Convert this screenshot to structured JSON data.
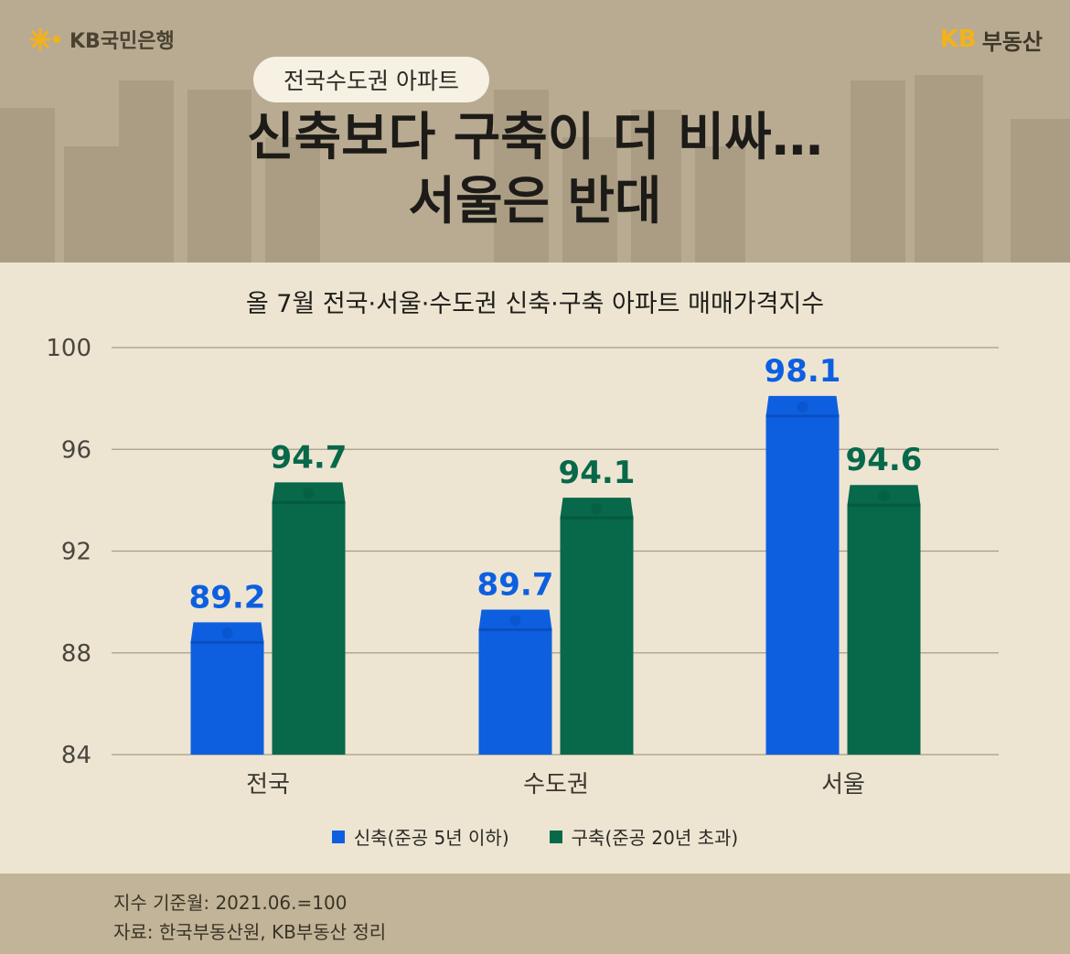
{
  "brand": {
    "bank": "KB국민은행",
    "realestate_kb": "KB",
    "realestate_name": "부동산"
  },
  "header": {
    "badge": "전국수도권 아파트",
    "headline_line1": "신축보다 구축이 더 비싸…",
    "headline_line2": "서울은 반대"
  },
  "chart_data": {
    "type": "bar",
    "title": "올 7월 전국·서울·수도권 신축·구축 아파트 매매가격지수",
    "categories": [
      "전국",
      "수도권",
      "서울"
    ],
    "series": [
      {
        "name": "신축(준공 5년 이하)",
        "values": [
          89.2,
          89.7,
          98.1
        ],
        "labels": [
          "89.2",
          "89.7",
          "98.1"
        ],
        "color": "#0d5fe0"
      },
      {
        "name": "구축(준공 20년 초과)",
        "values": [
          94.7,
          94.1,
          94.6
        ],
        "labels": [
          "94.7",
          "94.1",
          "94.6"
        ],
        "color": "#07684a"
      }
    ],
    "ylim": [
      84,
      100
    ],
    "yticks": [
      84,
      88,
      92,
      96,
      100
    ],
    "ytick_labels": [
      "84",
      "88",
      "92",
      "96",
      "100"
    ],
    "grid": true,
    "legend": "bottom"
  },
  "footer": {
    "note": "지수 기준월: 2021.06.=100",
    "source": "자료: 한국부동산원, KB부동산 정리"
  }
}
